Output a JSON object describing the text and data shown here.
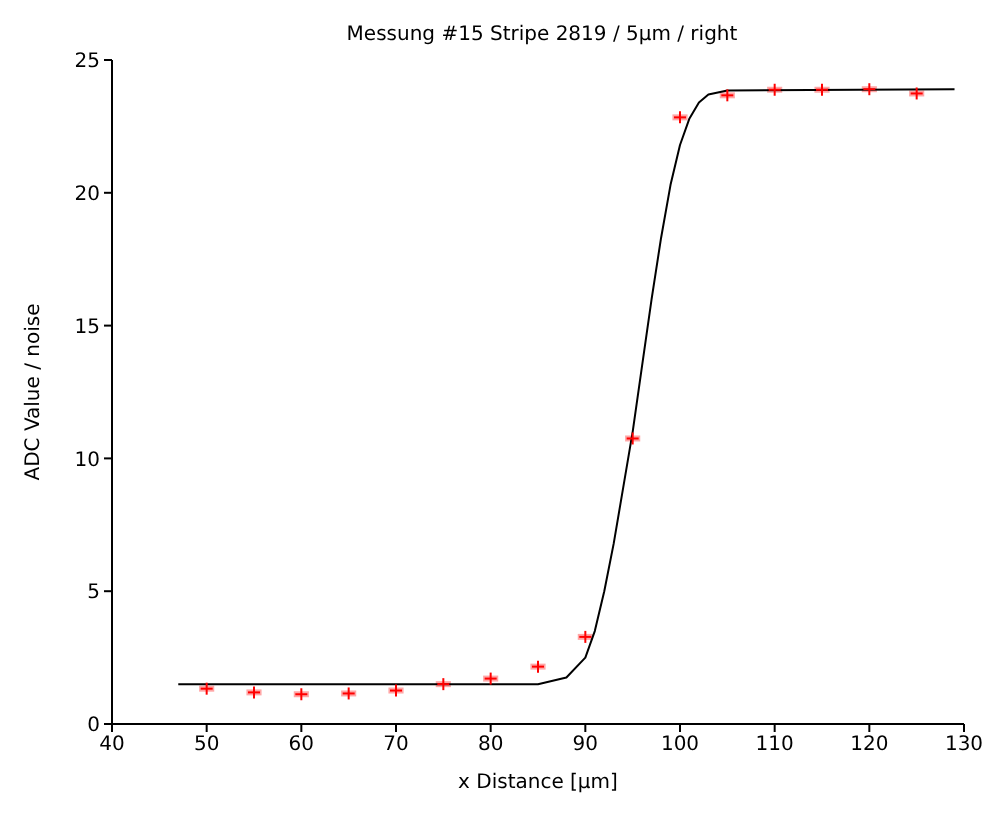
{
  "chart_data": {
    "type": "scatter",
    "title": "Messung #15 Stripe 2819 / 5µm / right",
    "xlabel": "x Distance [µm]",
    "ylabel": "ADC Value / noise",
    "xlim": [
      40,
      130
    ],
    "xticks": [
      40,
      50,
      60,
      70,
      80,
      90,
      100,
      110,
      120,
      130
    ],
    "ylim": [
      0,
      25
    ],
    "yticks": [
      0,
      5,
      10,
      15,
      20,
      25
    ],
    "grid": false,
    "legend": false,
    "series": [
      {
        "color": "#ff0000",
        "marker": "cross",
        "x": [
          50,
          55,
          60,
          65,
          70,
          75,
          80,
          85,
          90,
          95,
          100,
          105,
          110,
          115,
          120,
          125
        ],
        "values": [
          1.33,
          1.19,
          1.12,
          1.15,
          1.26,
          1.5,
          1.71,
          2.16,
          3.28,
          10.75,
          22.84,
          23.67,
          23.88,
          23.88,
          23.9,
          23.74
        ],
        "xerrors": [
          0.8,
          0.8,
          0.8,
          0.8,
          0.8,
          0.8,
          0.8,
          0.8,
          0.8,
          0.8,
          0.8,
          0.8,
          0.8,
          0.8,
          0.8,
          0.8
        ]
      },
      {
        "type": "line",
        "color": "#000000",
        "marker": "none",
        "line_style": "solid",
        "x": [
          47,
          85,
          88,
          90,
          91,
          92,
          93,
          94,
          95,
          96,
          97,
          98,
          99,
          100,
          101,
          102,
          103,
          105,
          129
        ],
        "values": [
          1.5,
          1.5,
          1.75,
          2.5,
          3.5,
          5,
          6.8,
          8.9,
          11,
          13.5,
          16,
          18.3,
          20.3,
          21.8,
          22.8,
          23.4,
          23.7,
          23.85,
          23.9
        ]
      }
    ]
  }
}
